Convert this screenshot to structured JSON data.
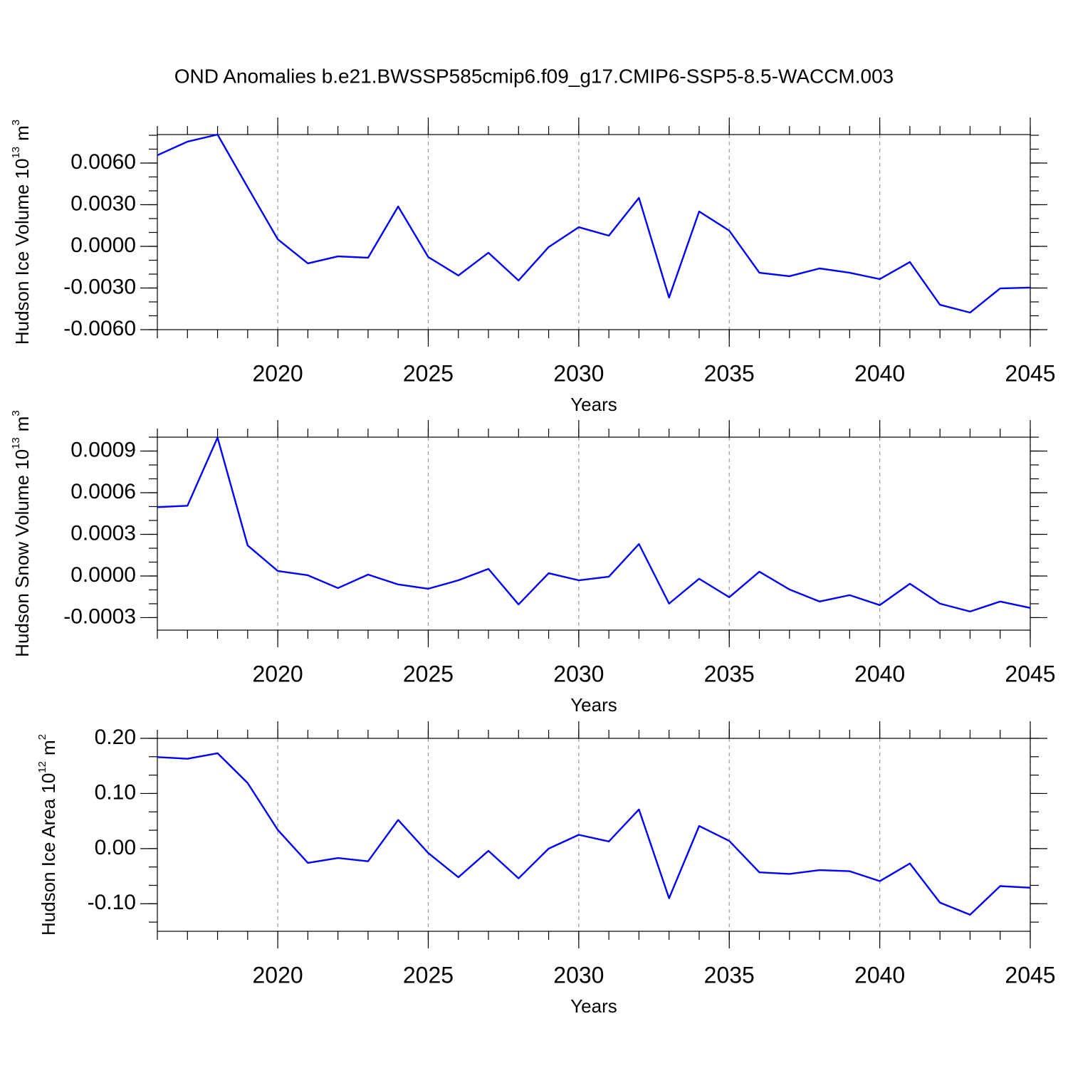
{
  "title": "OND Anomalies b.e21.BWSSP585cmip6.f09_g17.CMIP6-SSP5-8.5-WACCM.003",
  "chart_data": [
    {
      "type": "line",
      "ylabel": {
        "text": "Hudson Ice Volume 10",
        "exponent": "13",
        "unit": "m",
        "unit_exponent": "3"
      },
      "xlabel": "Years",
      "x": [
        2016,
        2017,
        2018,
        2019,
        2020,
        2021,
        2022,
        2023,
        2024,
        2025,
        2026,
        2027,
        2028,
        2029,
        2030,
        2031,
        2032,
        2033,
        2034,
        2035,
        2036,
        2037,
        2038,
        2039,
        2040,
        2041,
        2042,
        2043,
        2044,
        2045
      ],
      "series": [
        {
          "color": "#0000ff",
          "values": [
            0.00656,
            0.00754,
            0.00805,
            0.00426,
            0.00051,
            -0.00123,
            -0.00072,
            -0.00082,
            0.00287,
            -0.00077,
            -0.0021,
            -0.00046,
            -0.00246,
            -5e-05,
            0.00138,
            0.00077,
            0.00349,
            -0.00369,
            0.00251,
            0.00113,
            -0.0019,
            -0.00215,
            -0.00159,
            -0.0019,
            -0.00236,
            -0.00113,
            -0.00421,
            -0.00477,
            -0.00303,
            -0.00297
          ]
        }
      ],
      "xlim": [
        2016,
        2045
      ],
      "xticks": [
        2020,
        2025,
        2030,
        2035,
        2040,
        2045
      ],
      "ylim": [
        -0.006,
        0.00805
      ],
      "yticks": [
        {
          "value": 0.006,
          "label": "0.0060"
        },
        {
          "value": 0.003,
          "label": "0.0030"
        },
        {
          "value": 0,
          "label": "0.0000"
        },
        {
          "value": -0.003,
          "label": "-0.0030"
        },
        {
          "value": -0.006,
          "label": "-0.0060"
        }
      ],
      "grid": true
    },
    {
      "type": "line",
      "ylabel": {
        "text": "Hudson Snow Volume 10",
        "exponent": "13",
        "unit": "m",
        "unit_exponent": "3"
      },
      "xlabel": "Years",
      "x": [
        2016,
        2017,
        2018,
        2019,
        2020,
        2021,
        2022,
        2023,
        2024,
        2025,
        2026,
        2027,
        2028,
        2029,
        2030,
        2031,
        2032,
        2033,
        2034,
        2035,
        2036,
        2037,
        2038,
        2039,
        2040,
        2041,
        2042,
        2043,
        2044,
        2045
      ],
      "series": [
        {
          "color": "#0000ff",
          "values": [
            0.000496,
            0.000506,
            0.000997,
            0.00022,
            3.6e-05,
            5e-06,
            -8.7e-05,
            1e-05,
            -6.1e-05,
            -9.2e-05,
            -3.1e-05,
            5.1e-05,
            -0.000205,
            2e-05,
            -3.1e-05,
            -5e-06,
            0.00023,
            -0.000199,
            -2e-05,
            -0.000153,
            3.1e-05,
            -9.7e-05,
            -0.000184,
            -0.000138,
            -0.00021,
            -5.6e-05,
            -0.000199,
            -0.000256,
            -0.000184,
            -0.00023
          ]
        }
      ],
      "xlim": [
        2016,
        2045
      ],
      "xticks": [
        2020,
        2025,
        2030,
        2035,
        2040,
        2045
      ],
      "ylim": [
        -0.00039,
        0.001
      ],
      "yticks": [
        {
          "value": 0.0009,
          "label": "0.0009"
        },
        {
          "value": 0.0006,
          "label": "0.0006"
        },
        {
          "value": 0.0003,
          "label": "0.0003"
        },
        {
          "value": 0,
          "label": "0.0000"
        },
        {
          "value": -0.0003,
          "label": "-0.0003"
        }
      ],
      "grid": true
    },
    {
      "type": "line",
      "ylabel": {
        "text": "Hudson Ice Area 10",
        "exponent": "12",
        "unit": "m",
        "unit_exponent": "2"
      },
      "xlabel": "Years",
      "x": [
        2016,
        2017,
        2018,
        2019,
        2020,
        2021,
        2022,
        2023,
        2024,
        2025,
        2026,
        2027,
        2028,
        2029,
        2030,
        2031,
        2032,
        2033,
        2034,
        2035,
        2036,
        2037,
        2038,
        2039,
        2040,
        2041,
        2042,
        2043,
        2044,
        2045
      ],
      "series": [
        {
          "color": "#0000ff",
          "values": [
            0.166,
            0.163,
            0.173,
            0.119,
            0.034,
            -0.026,
            -0.017,
            -0.023,
            0.052,
            -0.008,
            -0.052,
            -0.004,
            -0.054,
            0,
            0.025,
            0.013,
            0.071,
            -0.09,
            0.041,
            0.014,
            -0.043,
            -0.046,
            -0.039,
            -0.041,
            -0.059,
            -0.027,
            -0.098,
            -0.12,
            -0.068,
            -0.071
          ]
        }
      ],
      "xlim": [
        2016,
        2045
      ],
      "xticks": [
        2020,
        2025,
        2030,
        2035,
        2040,
        2045
      ],
      "ylim": [
        -0.15,
        0.2
      ],
      "yticks": [
        {
          "value": 0.2,
          "label": "0.20"
        },
        {
          "value": 0.1,
          "label": "0.10"
        },
        {
          "value": 0,
          "label": "0.00"
        },
        {
          "value": -0.1,
          "label": "-0.10"
        }
      ],
      "grid": true
    }
  ]
}
